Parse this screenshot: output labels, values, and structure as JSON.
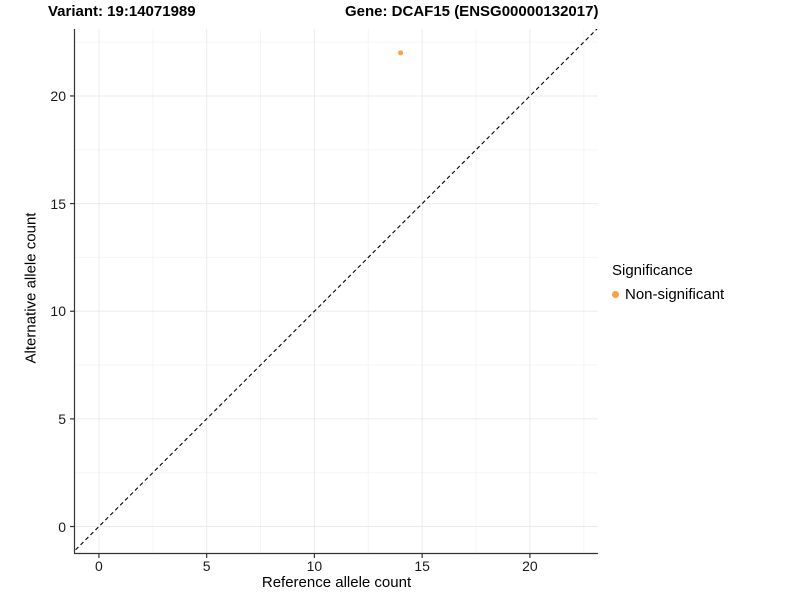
{
  "chart_data": {
    "type": "scatter",
    "title_left": "Variant: 19:14071989",
    "title_right": "Gene: DCAF15 (ENSG00000132017)",
    "xlabel": "Reference allele count",
    "ylabel": "Alternative allele count",
    "xlim": [
      -1.11,
      23.16
    ],
    "ylim": [
      -1.23,
      23.11
    ],
    "x_ticks": [
      0,
      5,
      10,
      15,
      20
    ],
    "y_ticks": [
      0,
      5,
      10,
      15,
      20
    ],
    "x_minor_ticks": [
      2.5,
      7.5,
      12.5,
      17.5,
      22.5
    ],
    "y_minor_ticks": [
      2.5,
      7.5,
      12.5,
      17.5,
      22.5
    ],
    "grid": true,
    "points": [
      {
        "x": 14,
        "y": 22,
        "series": "Non-significant",
        "color": "#F9A242",
        "radius": 2.5
      }
    ],
    "reference_line": {
      "type": "identity",
      "style": "dashed",
      "color": "#000000"
    },
    "legend": {
      "position": "right",
      "title": "Significance",
      "items": [
        {
          "label": "Non-significant",
          "color": "#F9A242"
        }
      ]
    },
    "colors": {
      "axis": "#333333",
      "grid_major": "#EBEBEB",
      "grid_minor": "#F5F5F5",
      "background": "#FFFFFF"
    }
  }
}
